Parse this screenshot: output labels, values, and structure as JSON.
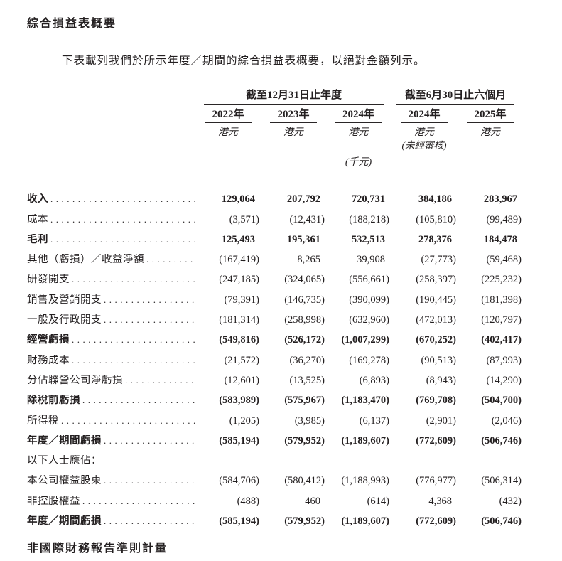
{
  "page": {
    "section_title": "綜合損益表概要",
    "intro": "下表載列我們於所示年度／期間的綜合損益表概要，以絕對金額列示。",
    "footer_heading": "非國際財務報告準則計量"
  },
  "colors": {
    "text": "#231f20",
    "background": "#ffffff",
    "rule": "#2a2627"
  },
  "table": {
    "column_groups": [
      {
        "label": "截至12月31日止年度",
        "span": 3
      },
      {
        "label": "截至6月30日止六個月",
        "span": 2
      }
    ],
    "columns": [
      {
        "year": "2022年",
        "unit": "港元"
      },
      {
        "year": "2023年",
        "unit": "港元"
      },
      {
        "year": "2024年",
        "unit": "港元",
        "subnote": "(千元)"
      },
      {
        "year": "2024年",
        "unit": "港元",
        "note": "(未經審核)"
      },
      {
        "year": "2025年",
        "unit": "港元"
      }
    ],
    "rows": [
      {
        "label": "收入",
        "bold": true,
        "dots": true,
        "values": [
          "129,064",
          "207,792",
          "720,731",
          "384,186",
          "283,967"
        ]
      },
      {
        "label": "成本",
        "bold": false,
        "dots": true,
        "values": [
          "(3,571)",
          "(12,431)",
          "(188,218)",
          "(105,810)",
          "(99,489)"
        ]
      },
      {
        "label": "毛利",
        "bold": true,
        "dots": true,
        "values": [
          "125,493",
          "195,361",
          "532,513",
          "278,376",
          "184,478"
        ]
      },
      {
        "label": "其他（虧損）／收益淨額",
        "bold": false,
        "dots": true,
        "values": [
          "(167,419)",
          "8,265",
          "39,908",
          "(27,773)",
          "(59,468)"
        ]
      },
      {
        "label": "研發開支",
        "bold": false,
        "dots": true,
        "values": [
          "(247,185)",
          "(324,065)",
          "(556,661)",
          "(258,397)",
          "(225,232)"
        ]
      },
      {
        "label": "銷售及營銷開支",
        "bold": false,
        "dots": true,
        "values": [
          "(79,391)",
          "(146,735)",
          "(390,099)",
          "(190,445)",
          "(181,398)"
        ]
      },
      {
        "label": "一般及行政開支",
        "bold": false,
        "dots": true,
        "values": [
          "(181,314)",
          "(258,998)",
          "(632,960)",
          "(472,013)",
          "(120,797)"
        ]
      },
      {
        "label": "經營虧損",
        "bold": true,
        "dots": true,
        "values": [
          "(549,816)",
          "(526,172)",
          "(1,007,299)",
          "(670,252)",
          "(402,417)"
        ]
      },
      {
        "label": "財務成本",
        "bold": false,
        "dots": true,
        "values": [
          "(21,572)",
          "(36,270)",
          "(169,278)",
          "(90,513)",
          "(87,993)"
        ]
      },
      {
        "label": "分佔聯營公司淨虧損",
        "bold": false,
        "dots": true,
        "values": [
          "(12,601)",
          "(13,525)",
          "(6,893)",
          "(8,943)",
          "(14,290)"
        ]
      },
      {
        "label": "除稅前虧損",
        "bold": true,
        "dots": true,
        "values": [
          "(583,989)",
          "(575,967)",
          "(1,183,470)",
          "(769,708)",
          "(504,700)"
        ]
      },
      {
        "label": "所得稅",
        "bold": false,
        "dots": true,
        "values": [
          "(1,205)",
          "(3,985)",
          "(6,137)",
          "(2,901)",
          "(2,046)"
        ]
      },
      {
        "label": "年度／期間虧損",
        "bold": true,
        "dots": true,
        "values": [
          "(585,194)",
          "(579,952)",
          "(1,189,607)",
          "(772,609)",
          "(506,746)"
        ]
      },
      {
        "label": "以下人士應佔：",
        "bold": false,
        "dots": false,
        "values": [
          "",
          "",
          "",
          "",
          ""
        ]
      },
      {
        "label": "本公司權益股東",
        "bold": false,
        "dots": true,
        "values": [
          "(584,706)",
          "(580,412)",
          "(1,188,993)",
          "(776,977)",
          "(506,314)"
        ]
      },
      {
        "label": "非控股權益",
        "bold": false,
        "dots": true,
        "values": [
          "(488)",
          "460",
          "(614)",
          "4,368",
          "(432)"
        ]
      },
      {
        "label": "年度／期間虧損",
        "bold": true,
        "dots": true,
        "values": [
          "(585,194)",
          "(579,952)",
          "(1,189,607)",
          "(772,609)",
          "(506,746)"
        ]
      }
    ]
  }
}
